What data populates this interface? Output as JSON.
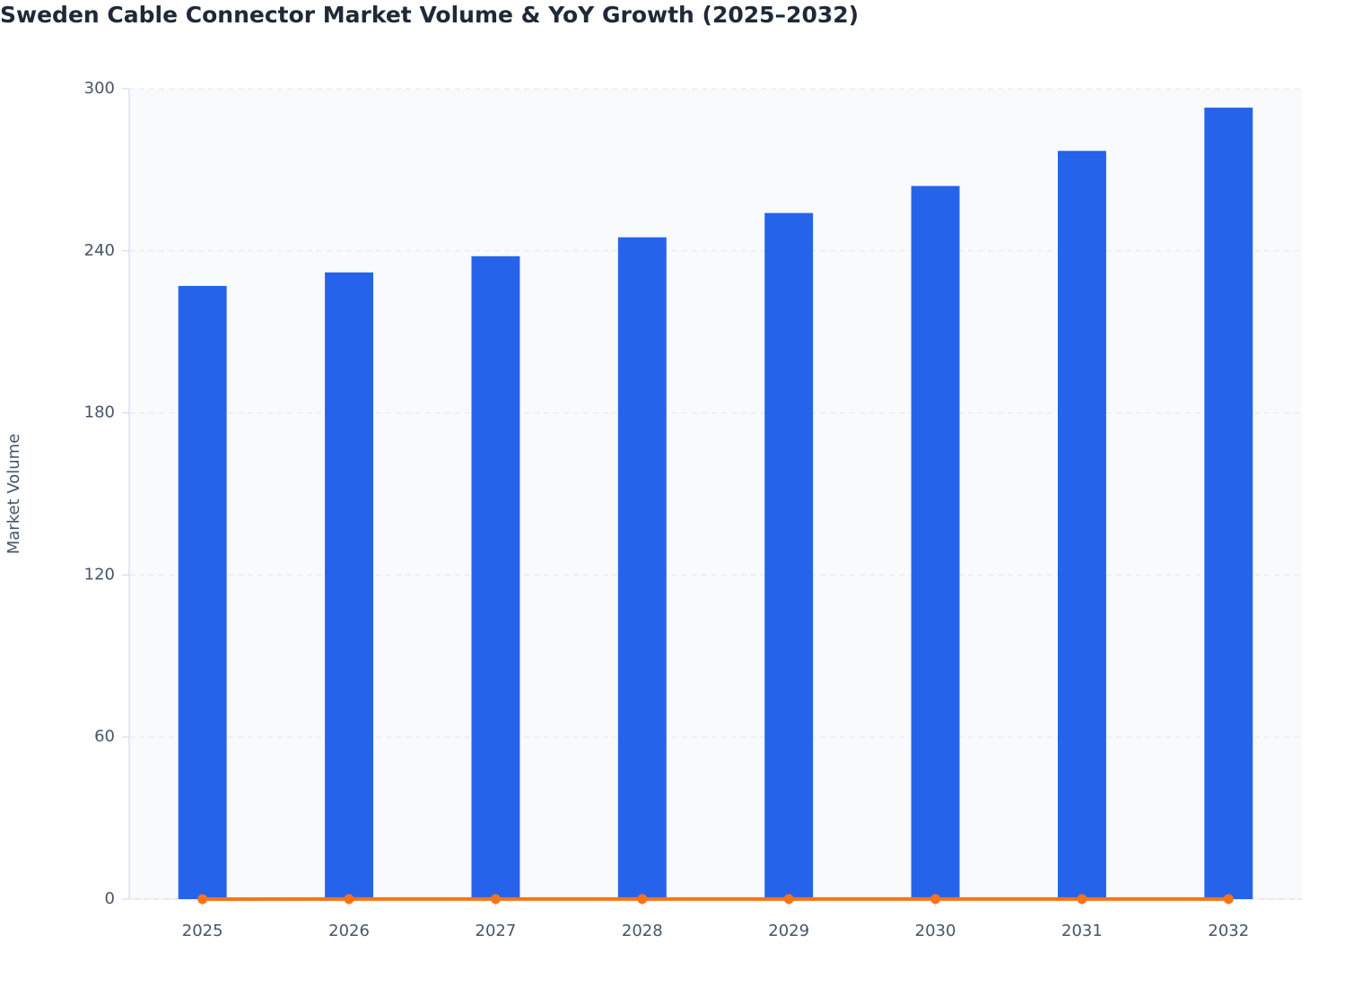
{
  "chart_data": {
    "type": "bar",
    "title": "Sweden Cable Connector Market Volume & YoY Growth (2025–2032)",
    "y_label": "Market Volume",
    "categories": [
      "2025",
      "2026",
      "2027",
      "2028",
      "2029",
      "2030",
      "2031",
      "2032"
    ],
    "series": [
      {
        "type": "bar",
        "color": "#2563eb",
        "values": [
          227,
          232,
          238,
          245,
          254,
          264,
          277,
          293
        ]
      },
      {
        "type": "line",
        "color": "#f97316",
        "values": [
          0,
          0.022,
          0.026,
          0.029,
          0.037,
          0.039,
          0.049,
          0.058
        ]
      }
    ],
    "ylim": [
      0,
      300
    ],
    "yticks": [
      0,
      60,
      120,
      180,
      240,
      300
    ],
    "grid": true
  }
}
